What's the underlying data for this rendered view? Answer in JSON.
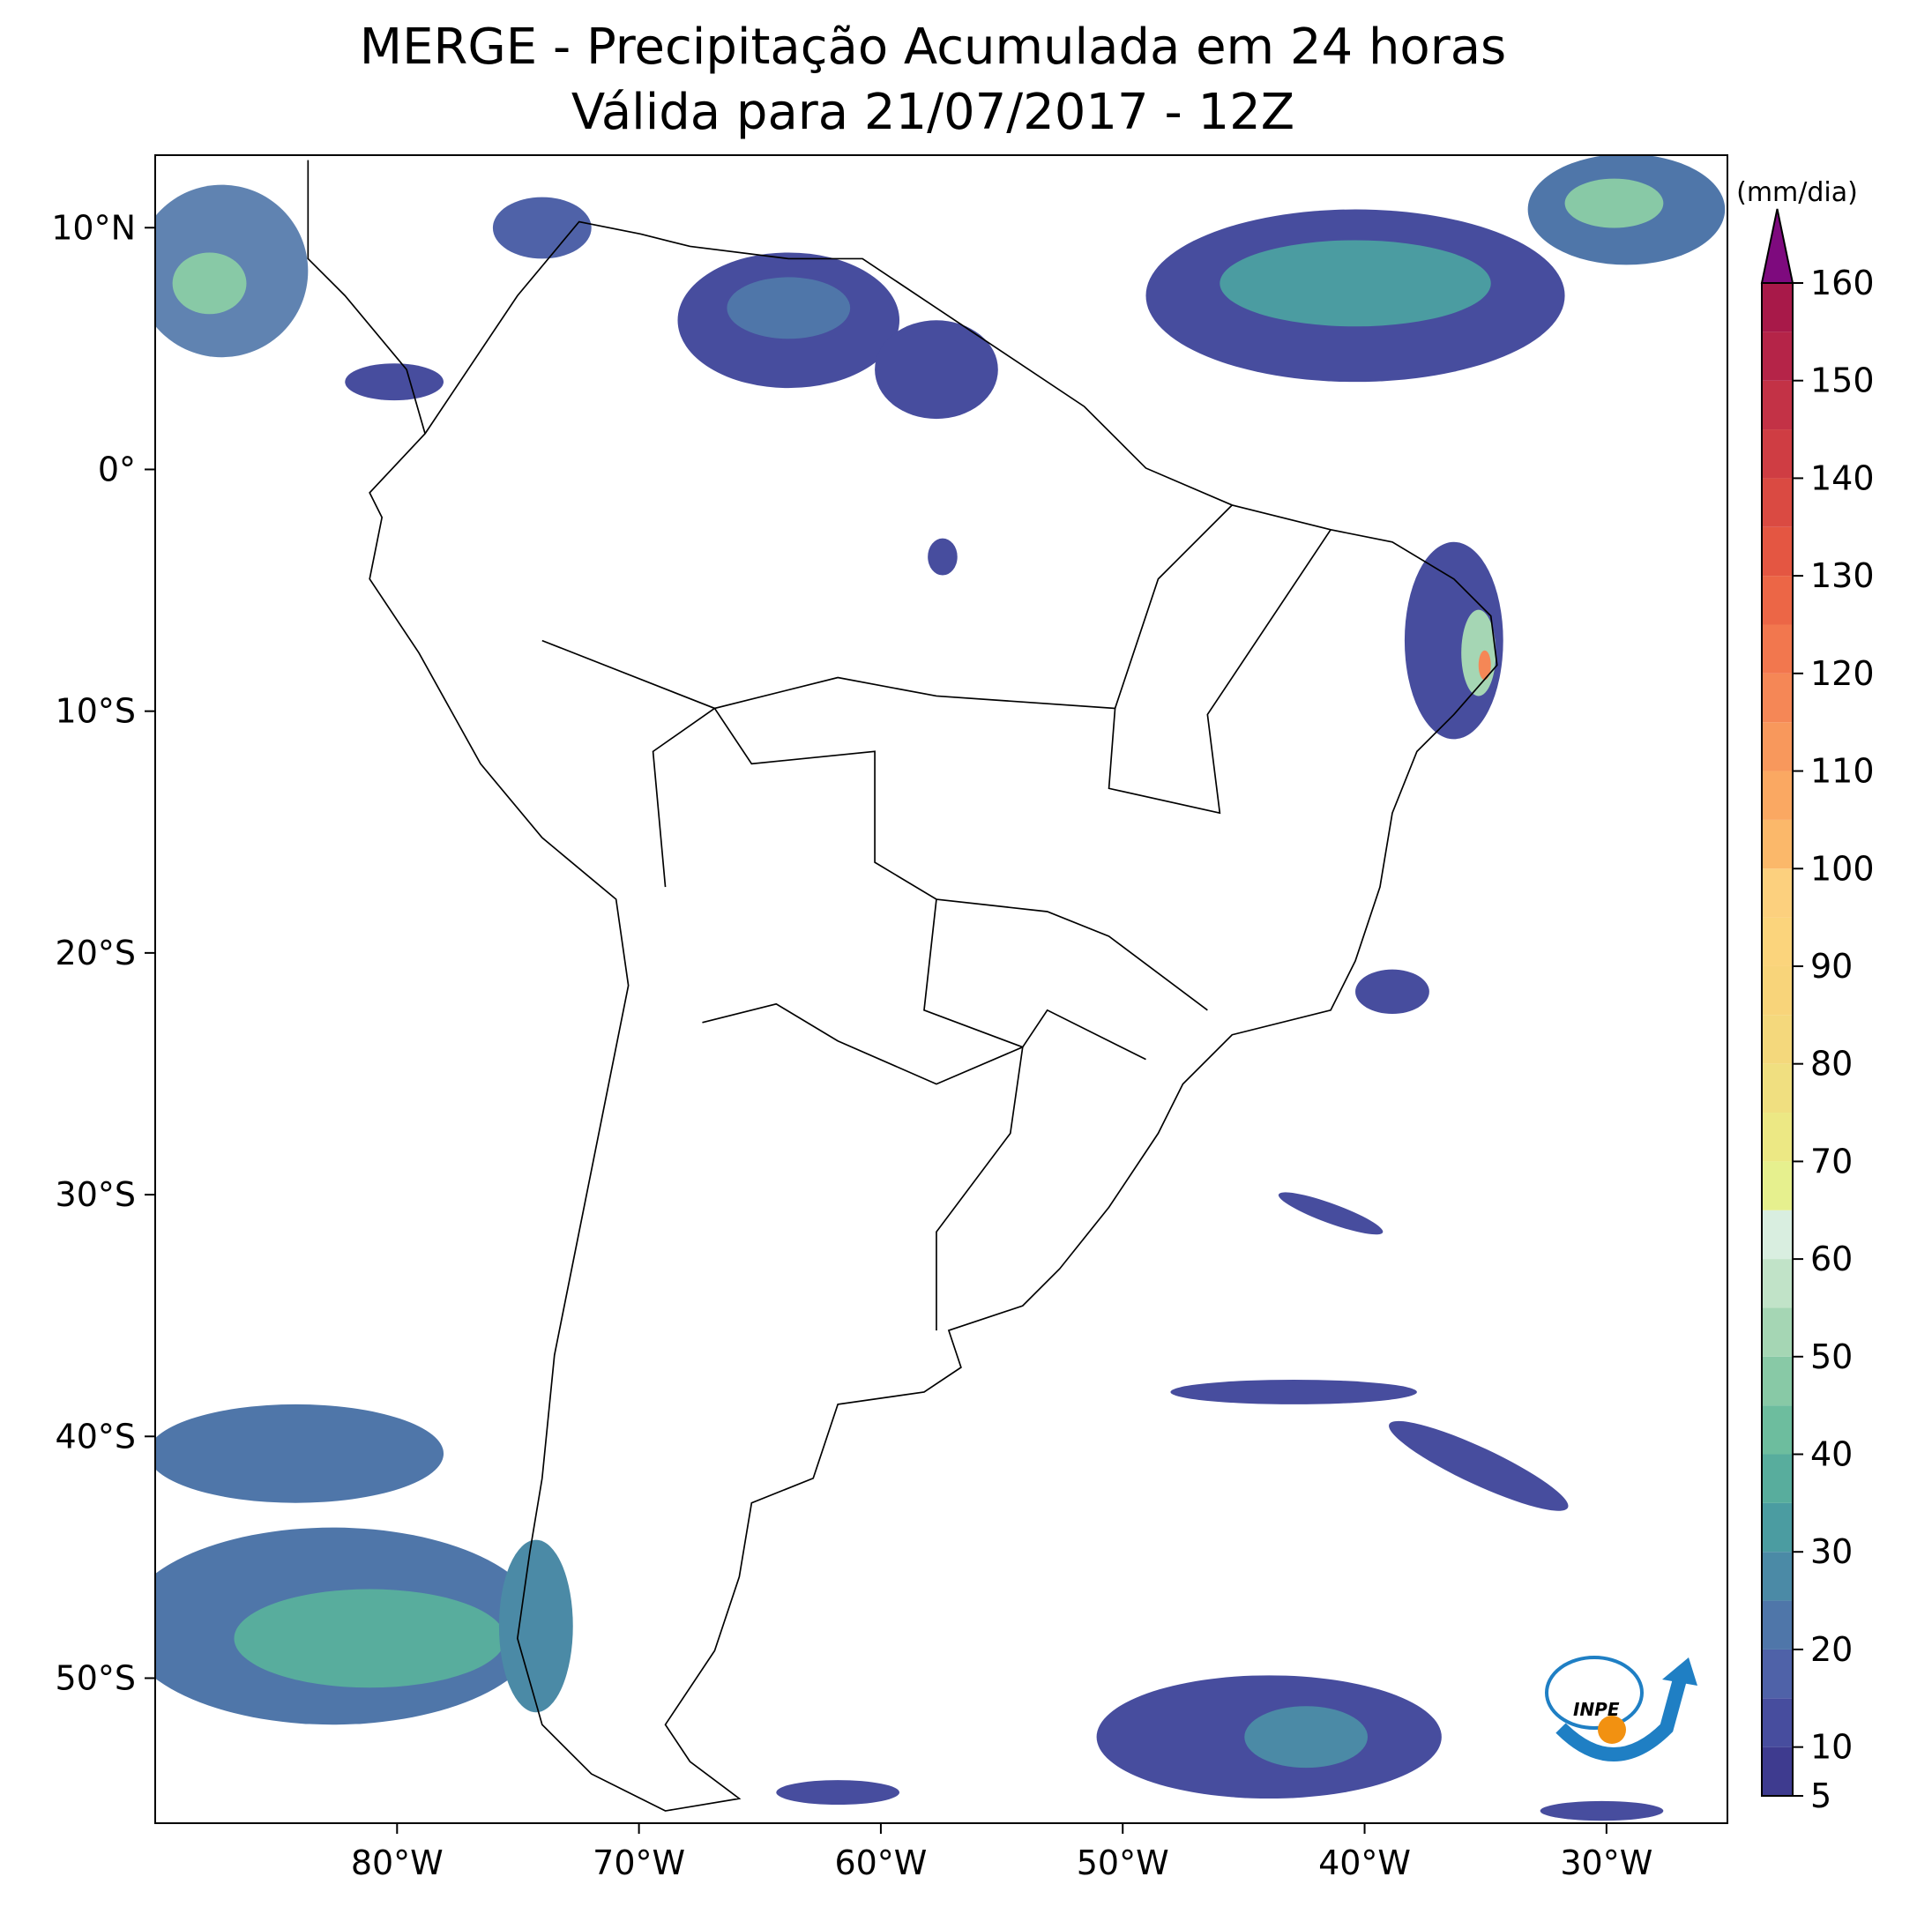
{
  "title": "MERGE - Precipitação Acumulada em 24 horas",
  "subtitle": "Válida para 21/07/2017 - 12Z",
  "map": {
    "xlim": [
      -90,
      -25
    ],
    "ylim": [
      -56,
      13
    ],
    "xticks": [
      {
        "value": -80,
        "label": "80°W"
      },
      {
        "value": -70,
        "label": "70°W"
      },
      {
        "value": -60,
        "label": "60°W"
      },
      {
        "value": -50,
        "label": "50°W"
      },
      {
        "value": -40,
        "label": "40°W"
      },
      {
        "value": -30,
        "label": "30°W"
      }
    ],
    "yticks": [
      {
        "value": 10,
        "label": "10°N"
      },
      {
        "value": 0,
        "label": "0°"
      },
      {
        "value": -10,
        "label": "10°S"
      },
      {
        "value": -20,
        "label": "20°S"
      },
      {
        "value": -30,
        "label": "30°S"
      },
      {
        "value": -40,
        "label": "40°S"
      },
      {
        "value": -50,
        "label": "50°S"
      }
    ]
  },
  "colorbar": {
    "label": "(mm/dia)",
    "levels": [
      5,
      10,
      15,
      20,
      25,
      30,
      35,
      40,
      45,
      50,
      55,
      60,
      65,
      70,
      75,
      80,
      85,
      90,
      95,
      100,
      105,
      110,
      115,
      120,
      125,
      130,
      135,
      140,
      145,
      150,
      155,
      160
    ],
    "colors": [
      "#3e3b8f",
      "#474d9e",
      "#4f62a8",
      "#4f76a9",
      "#4b8aa6",
      "#4b9ca1",
      "#58ad9d",
      "#6dbd9e",
      "#88c9a6",
      "#a5d6b4",
      "#c1e3c8",
      "#d9eee0",
      "#e6f08e",
      "#ece884",
      "#f0df80",
      "#f4d87c",
      "#f8d47a",
      "#fbd47c",
      "#fcd07e",
      "#fbb86a",
      "#faa862",
      "#f8985c",
      "#f58756",
      "#f2774e",
      "#ec6646",
      "#e45642",
      "#da4a42",
      "#cf3d43",
      "#c33246",
      "#b52448",
      "#a81949"
    ],
    "extend_color": "#7e0a7e",
    "ticks": [
      5,
      10,
      20,
      30,
      40,
      50,
      60,
      70,
      80,
      90,
      100,
      110,
      120,
      130,
      140,
      150,
      160
    ]
  },
  "logo": "INPE"
}
